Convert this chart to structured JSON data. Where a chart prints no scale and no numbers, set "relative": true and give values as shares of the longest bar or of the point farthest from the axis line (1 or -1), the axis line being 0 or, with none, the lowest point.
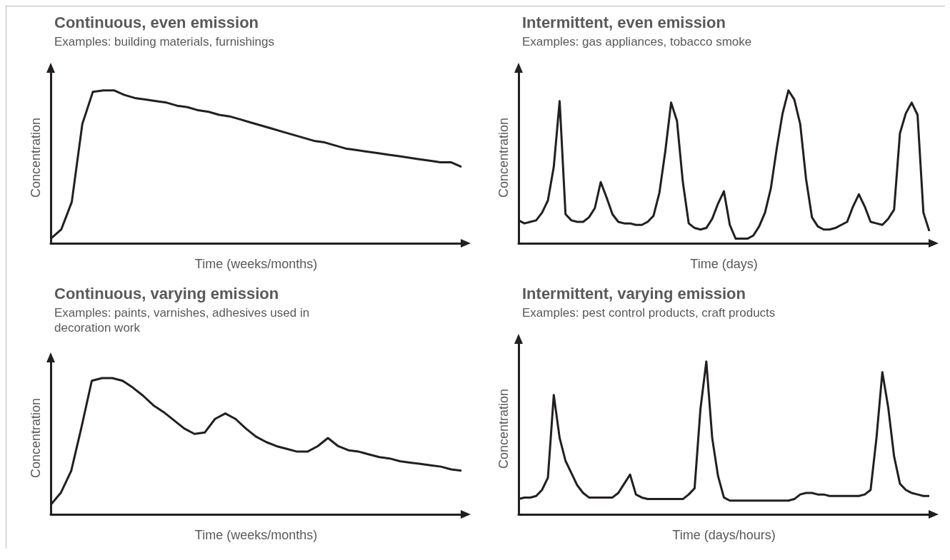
{
  "chart_data": [
    {
      "type": "line",
      "title": "Continuous, even emission",
      "subtitle": "Examples: building materials, furnishings",
      "xlabel": "Time (weeks/months)",
      "ylabel": "Concentration",
      "relative": true,
      "marker": "none",
      "color": "#231f20",
      "categories": [
        null,
        null,
        null,
        null,
        null,
        null,
        null,
        null,
        null,
        null,
        null,
        null,
        null,
        null,
        null,
        null,
        null,
        null,
        null,
        null,
        null,
        null,
        null,
        null,
        null,
        null,
        null,
        null,
        null,
        null,
        null,
        null,
        null,
        null,
        null,
        null,
        null,
        null,
        null,
        null
      ],
      "values": [
        0.03,
        0.09,
        0.27,
        0.78,
        0.99,
        1,
        1,
        0.97,
        0.95,
        0.94,
        0.93,
        0.92,
        0.9,
        0.89,
        0.87,
        0.86,
        0.84,
        0.83,
        0.81,
        0.79,
        0.77,
        0.75,
        0.73,
        0.71,
        0.69,
        0.67,
        0.66,
        0.64,
        0.62,
        0.61,
        0.6,
        0.59,
        0.58,
        0.57,
        0.56,
        0.55,
        0.54,
        0.53,
        0.53,
        0.5
      ]
    },
    {
      "type": "line",
      "title": "Intermittent, even emission",
      "subtitle": "Examples: gas appliances, tobacco smoke",
      "xlabel": "Time (days)",
      "ylabel": "Concentration",
      "relative": true,
      "marker": "none",
      "color": "#231f20",
      "categories": [
        null,
        null,
        null,
        null,
        null,
        null,
        null,
        null,
        null,
        null,
        null,
        null,
        null,
        null,
        null,
        null,
        null,
        null,
        null,
        null,
        null,
        null,
        null,
        null,
        null,
        null,
        null,
        null,
        null,
        null,
        null,
        null,
        null,
        null,
        null,
        null,
        null,
        null,
        null,
        null,
        null,
        null,
        null,
        null,
        null,
        null,
        null,
        null,
        null,
        null,
        null,
        null,
        null,
        null,
        null,
        null,
        null,
        null,
        null,
        null,
        null,
        null,
        null,
        null,
        null,
        null,
        null,
        null,
        null,
        null,
        null
      ],
      "values": [
        0.15,
        0.13,
        0.14,
        0.15,
        0.2,
        0.28,
        0.5,
        0.93,
        0.19,
        0.15,
        0.14,
        0.14,
        0.17,
        0.23,
        0.4,
        0.3,
        0.19,
        0.14,
        0.13,
        0.13,
        0.12,
        0.12,
        0.14,
        0.18,
        0.33,
        0.6,
        0.92,
        0.8,
        0.4,
        0.13,
        0.1,
        0.09,
        0.1,
        0.16,
        0.26,
        0.34,
        0.12,
        0.03,
        0.03,
        0.03,
        0.05,
        0.11,
        0.2,
        0.36,
        0.62,
        0.85,
        1,
        0.94,
        0.78,
        0.42,
        0.17,
        0.11,
        0.09,
        0.09,
        0.1,
        0.12,
        0.14,
        0.24,
        0.32,
        0.24,
        0.14,
        0.13,
        0.12,
        0.16,
        0.22,
        0.72,
        0.85,
        0.92,
        0.84,
        0.2,
        0.08
      ]
    },
    {
      "type": "line",
      "title": "Continuous, varying emission",
      "subtitle": "Examples: paints, varnishes, adhesives used in decoration work",
      "xlabel": "Time (weeks/months)",
      "ylabel": "Concentration",
      "relative": true,
      "marker": "none",
      "color": "#231f20",
      "categories": [
        null,
        null,
        null,
        null,
        null,
        null,
        null,
        null,
        null,
        null,
        null,
        null,
        null,
        null,
        null,
        null,
        null,
        null,
        null,
        null,
        null,
        null,
        null,
        null,
        null,
        null,
        null,
        null,
        null,
        null,
        null,
        null,
        null,
        null,
        null,
        null,
        null,
        null,
        null,
        null,
        null
      ],
      "values": [
        0.07,
        0.16,
        0.32,
        0.64,
        0.98,
        1,
        1,
        0.98,
        0.93,
        0.87,
        0.8,
        0.75,
        0.69,
        0.63,
        0.59,
        0.6,
        0.7,
        0.74,
        0.7,
        0.63,
        0.57,
        0.53,
        0.5,
        0.48,
        0.46,
        0.46,
        0.5,
        0.56,
        0.5,
        0.47,
        0.46,
        0.44,
        0.42,
        0.41,
        0.39,
        0.38,
        0.37,
        0.36,
        0.35,
        0.33,
        0.32
      ]
    },
    {
      "type": "line",
      "title": "Intermittent, varying emission",
      "subtitle": "Examples: pest control products, craft products",
      "xlabel": "Time (days/hours)",
      "ylabel": "Concentration",
      "relative": true,
      "marker": "none",
      "color": "#231f20",
      "categories": [
        null,
        null,
        null,
        null,
        null,
        null,
        null,
        null,
        null,
        null,
        null,
        null,
        null,
        null,
        null,
        null,
        null,
        null,
        null,
        null,
        null,
        null,
        null,
        null,
        null,
        null,
        null,
        null,
        null,
        null,
        null,
        null,
        null,
        null,
        null,
        null,
        null,
        null,
        null,
        null,
        null,
        null,
        null,
        null,
        null,
        null,
        null,
        null,
        null,
        null,
        null,
        null,
        null,
        null,
        null,
        null,
        null,
        null,
        null,
        null,
        null,
        null,
        null,
        null,
        null,
        null,
        null,
        null,
        null,
        null,
        null
      ],
      "values": [
        0.1,
        0.11,
        0.11,
        0.12,
        0.16,
        0.24,
        0.78,
        0.5,
        0.35,
        0.27,
        0.19,
        0.14,
        0.11,
        0.11,
        0.11,
        0.11,
        0.11,
        0.14,
        0.2,
        0.26,
        0.13,
        0.11,
        0.1,
        0.1,
        0.1,
        0.1,
        0.1,
        0.1,
        0.1,
        0.13,
        0.17,
        0.69,
        1,
        0.5,
        0.25,
        0.11,
        0.09,
        0.09,
        0.09,
        0.09,
        0.09,
        0.09,
        0.09,
        0.09,
        0.09,
        0.09,
        0.09,
        0.1,
        0.13,
        0.14,
        0.14,
        0.13,
        0.13,
        0.12,
        0.12,
        0.12,
        0.12,
        0.12,
        0.12,
        0.13,
        0.16,
        0.5,
        0.93,
        0.7,
        0.38,
        0.2,
        0.16,
        0.14,
        0.13,
        0.12,
        0.12
      ]
    }
  ]
}
